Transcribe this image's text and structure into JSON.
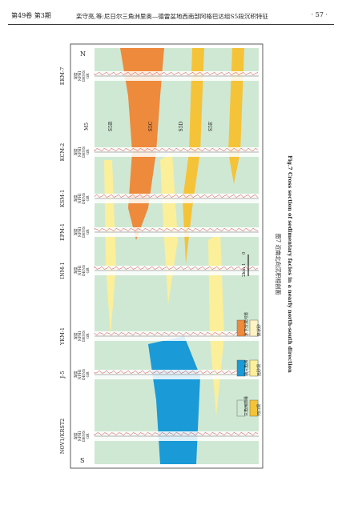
{
  "header": {
    "volume": "第49卷 第3期",
    "running_title": "栾守亮,等:尼日尔三角洲里奥—德雷盆地西南部阿格巴达组S5段沉积特征",
    "page": "· 57 ·"
  },
  "figure": {
    "north": "N",
    "south": "S",
    "wells": [
      "EKM-7",
      "KCM-2",
      "KSM-1",
      "EPM-1",
      "INM-1",
      "YKM-1",
      "J-5",
      "NOV1/KRST2"
    ],
    "track_labels": [
      "深度",
      "NPHI",
      "DENS",
      "GR"
    ],
    "layers": [
      "M5",
      "S5B",
      "S5C",
      "S5D",
      "S5E"
    ],
    "scale": [
      "0",
      "1",
      "2km"
    ],
    "legend": [
      "三角洲前缘",
      "河口坝",
      "前三角洲",
      "远砂坝",
      "水下分流河道",
      "席状砂"
    ],
    "caption_cn": "图7 近南北向沉积相剖面",
    "caption_en": "Fig.7 Cross section of sedimentary facies in a nearly north-south direction"
  }
}
